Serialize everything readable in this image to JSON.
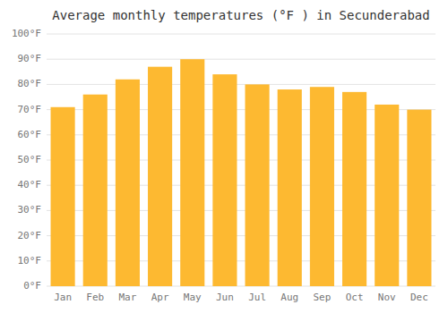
{
  "chart_data": {
    "type": "bar",
    "title": "Average monthly temperatures (°F ) in Secunderabad",
    "categories": [
      "Jan",
      "Feb",
      "Mar",
      "Apr",
      "May",
      "Jun",
      "Jul",
      "Aug",
      "Sep",
      "Oct",
      "Nov",
      "Dec"
    ],
    "values": [
      71,
      76,
      82,
      87,
      90,
      84,
      80,
      78,
      79,
      77,
      72,
      70
    ],
    "color": "#FDB931",
    "ylim": [
      0,
      100
    ],
    "yticks": [
      {
        "value": 0,
        "label": "0°F"
      },
      {
        "value": 10,
        "label": "10°F"
      },
      {
        "value": 20,
        "label": "20°F"
      },
      {
        "value": 30,
        "label": "30°F"
      },
      {
        "value": 40,
        "label": "40°F"
      },
      {
        "value": 50,
        "label": "50°F"
      },
      {
        "value": 60,
        "label": "60°F"
      },
      {
        "value": 70,
        "label": "70°F"
      },
      {
        "value": 80,
        "label": "80°F"
      },
      {
        "value": 90,
        "label": "90°F"
      },
      {
        "value": 100,
        "label": "100°F"
      }
    ],
    "grid": true
  }
}
